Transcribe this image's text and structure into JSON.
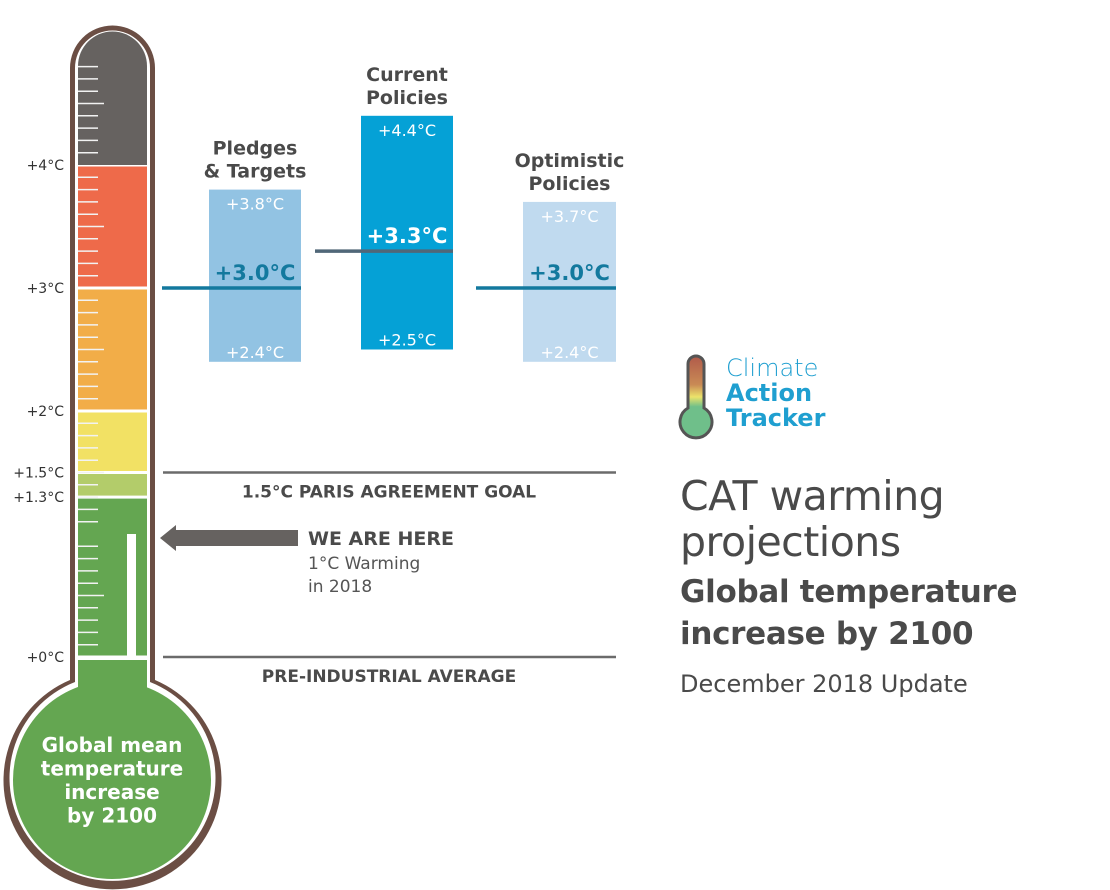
{
  "chart_data": {
    "type": "range-bar",
    "title": "CAT warming projections",
    "subtitle": "Global temperature increase by 2100",
    "update_note": "December 2018 Update",
    "unit": "°C",
    "ylim": [
      0,
      4.9
    ],
    "y_ticks": [
      {
        "value": 0,
        "label": "+0°C"
      },
      {
        "value": 1.3,
        "label": "+1.3°C"
      },
      {
        "value": 1.5,
        "label": "+1.5°C"
      },
      {
        "value": 2,
        "label": "+2°C"
      },
      {
        "value": 3,
        "label": "+3°C"
      },
      {
        "value": 4,
        "label": "+4°C"
      }
    ],
    "thermometer_bands": [
      {
        "from": 0,
        "to": 1.3,
        "color": "#64a651"
      },
      {
        "from": 1.3,
        "to": 1.5,
        "color": "#b3cc6a"
      },
      {
        "from": 1.5,
        "to": 2,
        "color": "#f2e164"
      },
      {
        "from": 2,
        "to": 3,
        "color": "#f2ad48"
      },
      {
        "from": 3,
        "to": 4,
        "color": "#ee6a4a"
      },
      {
        "from": 4,
        "to": 4.9,
        "color": "#666260"
      }
    ],
    "thermometer_label": [
      "Global mean",
      "temperature",
      "increase",
      "by 2100"
    ],
    "current_level": 1.0,
    "series": [
      {
        "name": "Pledges & Targets",
        "label_lines": [
          "Pledges",
          "& Targets"
        ],
        "low": 2.4,
        "median": 3.0,
        "high": 3.8,
        "low_label": "+2.4°C",
        "median_label": "+3.0°C",
        "high_label": "+3.8°C",
        "fill": "#92c3e3",
        "line": "#13799e",
        "median_text_color": "#13799e"
      },
      {
        "name": "Current Policies",
        "label_lines": [
          "Current",
          "Policies"
        ],
        "low": 2.5,
        "median": 3.3,
        "high": 4.4,
        "low_label": "+2.5°C",
        "median_label": "+3.3°C",
        "high_label": "+4.4°C",
        "fill": "#05a1d6",
        "line": "#506778",
        "median_text_color": "#ffffff"
      },
      {
        "name": "Optimistic Policies",
        "label_lines": [
          "Optimistic",
          "Policies"
        ],
        "low": 2.4,
        "median": 3.0,
        "high": 3.7,
        "low_label": "+2.4°C",
        "median_label": "+3.0°C",
        "high_label": "+3.7°C",
        "fill": "#c0daef",
        "line": "#13799e",
        "median_text_color": "#13799e"
      }
    ],
    "reference_lines": [
      {
        "value": 1.5,
        "label": "1.5°C PARIS AGREEMENT GOAL"
      },
      {
        "value": 0,
        "label": "PRE-INDUSTRIAL AVERAGE"
      }
    ],
    "annotation": {
      "value": 1.0,
      "title": "WE ARE HERE",
      "lines": [
        "1°C Warming",
        "in 2018"
      ]
    }
  },
  "logo": {
    "line1": "Climate",
    "line2": "Action",
    "line3": "Tracker"
  },
  "title": {
    "main_line1": "CAT warming",
    "main_line2": "projections",
    "sub_line1": "Global temperature",
    "sub_line2": "increase by 2100",
    "date": "December 2018 Update"
  }
}
